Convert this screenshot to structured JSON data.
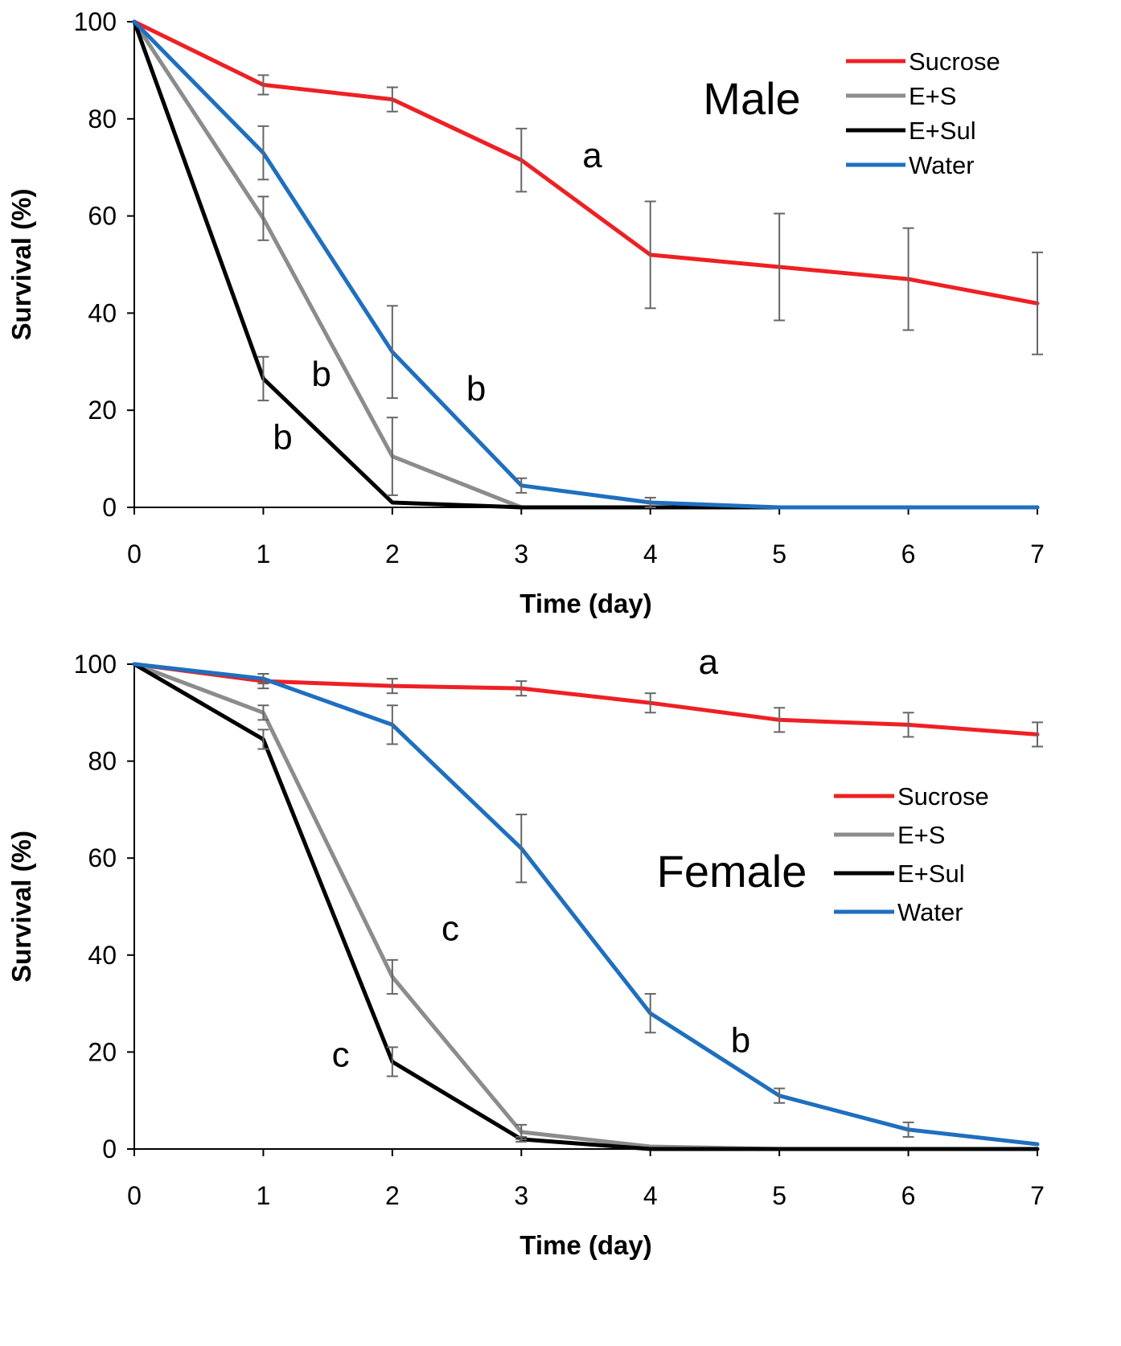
{
  "chart_data": [
    {
      "type": "line",
      "panel_label": "Male",
      "xlabel": "Time (day)",
      "ylabel": "Survival (%)",
      "xlim": [
        0,
        7
      ],
      "ylim": [
        0,
        100
      ],
      "x": [
        0,
        1,
        2,
        3,
        4,
        5,
        6,
        7
      ],
      "x_ticks": [
        "0",
        "1",
        "2",
        "3",
        "4",
        "5",
        "6",
        "7"
      ],
      "y_ticks": [
        "0",
        "20",
        "40",
        "60",
        "80",
        "100"
      ],
      "grid": false,
      "legend_position": "top-right",
      "series": [
        {
          "name": "Sucrose",
          "color": "#ee2024",
          "values": [
            100,
            87,
            84,
            71.5,
            52,
            49.5,
            47,
            42
          ],
          "errors": [
            0,
            2,
            2.5,
            6.5,
            11,
            11,
            10.5,
            10.5
          ]
        },
        {
          "name": "E+S",
          "color": "#8c8c8c",
          "values": [
            100,
            59.5,
            10.5,
            0,
            0,
            0,
            0,
            0
          ],
          "errors": [
            0,
            4.5,
            8,
            0,
            0,
            0,
            0,
            0
          ]
        },
        {
          "name": "E+Sul",
          "color": "#000000",
          "values": [
            100,
            26.5,
            1,
            0,
            0,
            0,
            0,
            0
          ],
          "errors": [
            0,
            4.5,
            0,
            0,
            0,
            0,
            0,
            0
          ]
        },
        {
          "name": "Water",
          "color": "#1f6fbf",
          "values": [
            100,
            73,
            32,
            4.5,
            1,
            0,
            0,
            0
          ],
          "errors": [
            0,
            5.5,
            9.5,
            1.5,
            1,
            0,
            0,
            0
          ]
        }
      ],
      "annotations": [
        {
          "text": "a",
          "x": 3.55,
          "y": 70
        },
        {
          "text": "b",
          "x": 1.15,
          "y": 12
        },
        {
          "text": "b",
          "x": 1.45,
          "y": 25
        },
        {
          "text": "b",
          "x": 2.65,
          "y": 22
        }
      ]
    },
    {
      "type": "line",
      "panel_label": "Female",
      "xlabel": "Time (day)",
      "ylabel": "Survival (%)",
      "xlim": [
        0,
        7
      ],
      "ylim": [
        0,
        100
      ],
      "x": [
        0,
        1,
        2,
        3,
        4,
        5,
        6,
        7
      ],
      "x_ticks": [
        "0",
        "1",
        "2",
        "3",
        "4",
        "5",
        "6",
        "7"
      ],
      "y_ticks": [
        "0",
        "20",
        "40",
        "60",
        "80",
        "100"
      ],
      "grid": false,
      "legend_position": "middle-right",
      "series": [
        {
          "name": "Sucrose",
          "color": "#ee2024",
          "values": [
            100,
            96.5,
            95.5,
            95,
            92,
            88.5,
            87.5,
            85.5
          ],
          "errors": [
            0,
            1.5,
            1.5,
            1.5,
            2,
            2.5,
            2.5,
            2.5
          ]
        },
        {
          "name": "E+S",
          "color": "#8c8c8c",
          "values": [
            100,
            90,
            35.5,
            3.5,
            0.5,
            0,
            0,
            0
          ],
          "errors": [
            0,
            1.5,
            3.5,
            1.5,
            0,
            0,
            0,
            0
          ]
        },
        {
          "name": "E+Sul",
          "color": "#000000",
          "values": [
            100,
            84.5,
            18,
            2,
            0,
            0,
            0,
            0
          ],
          "errors": [
            0,
            2,
            3,
            0.5,
            0,
            0,
            0,
            0
          ]
        },
        {
          "name": "Water",
          "color": "#1f6fbf",
          "values": [
            100,
            97,
            87.5,
            62,
            28,
            11,
            4,
            1
          ],
          "errors": [
            0,
            1,
            4,
            7,
            4,
            1.5,
            1.5,
            0
          ]
        }
      ],
      "annotations": [
        {
          "text": "a",
          "x": 4.45,
          "y": 98
        },
        {
          "text": "c",
          "x": 1.6,
          "y": 17
        },
        {
          "text": "c",
          "x": 2.45,
          "y": 43
        },
        {
          "text": "b",
          "x": 4.7,
          "y": 20
        }
      ]
    }
  ]
}
